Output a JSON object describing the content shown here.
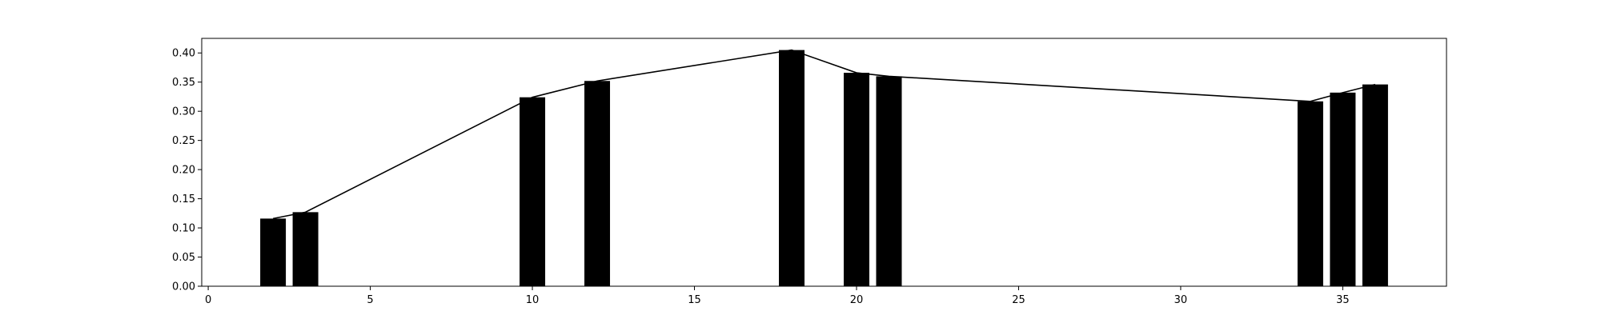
{
  "chart_data": {
    "type": "bar",
    "title": "",
    "xlabel": "",
    "ylabel": "",
    "xlim": [
      -0.2,
      38.2
    ],
    "ylim": [
      0.0,
      0.425
    ],
    "grid": false,
    "x_ticks": [
      0,
      5,
      10,
      15,
      20,
      25,
      30,
      35
    ],
    "x_tick_labels": [
      "0",
      "5",
      "10",
      "15",
      "20",
      "25",
      "30",
      "35"
    ],
    "y_ticks": [
      0.0,
      0.05,
      0.1,
      0.15,
      0.2,
      0.25,
      0.3,
      0.35,
      0.4
    ],
    "y_tick_labels": [
      "0.00",
      "0.05",
      "0.10",
      "0.15",
      "0.20",
      "0.25",
      "0.30",
      "0.35",
      "0.40"
    ],
    "bar_color": "#000000",
    "line_color": "#000000",
    "bars": [
      {
        "x": 2,
        "value": 0.116
      },
      {
        "x": 3,
        "value": 0.127
      },
      {
        "x": 10,
        "value": 0.324
      },
      {
        "x": 12,
        "value": 0.352
      },
      {
        "x": 18,
        "value": 0.405
      },
      {
        "x": 20,
        "value": 0.366
      },
      {
        "x": 21,
        "value": 0.36
      },
      {
        "x": 34,
        "value": 0.317
      },
      {
        "x": 35,
        "value": 0.332
      },
      {
        "x": 36,
        "value": 0.346
      }
    ],
    "line": {
      "x": [
        2,
        3,
        10,
        12,
        18,
        20,
        21,
        34,
        35,
        36
      ],
      "y": [
        0.116,
        0.127,
        0.324,
        0.352,
        0.405,
        0.366,
        0.36,
        0.317,
        0.332,
        0.346
      ]
    }
  }
}
